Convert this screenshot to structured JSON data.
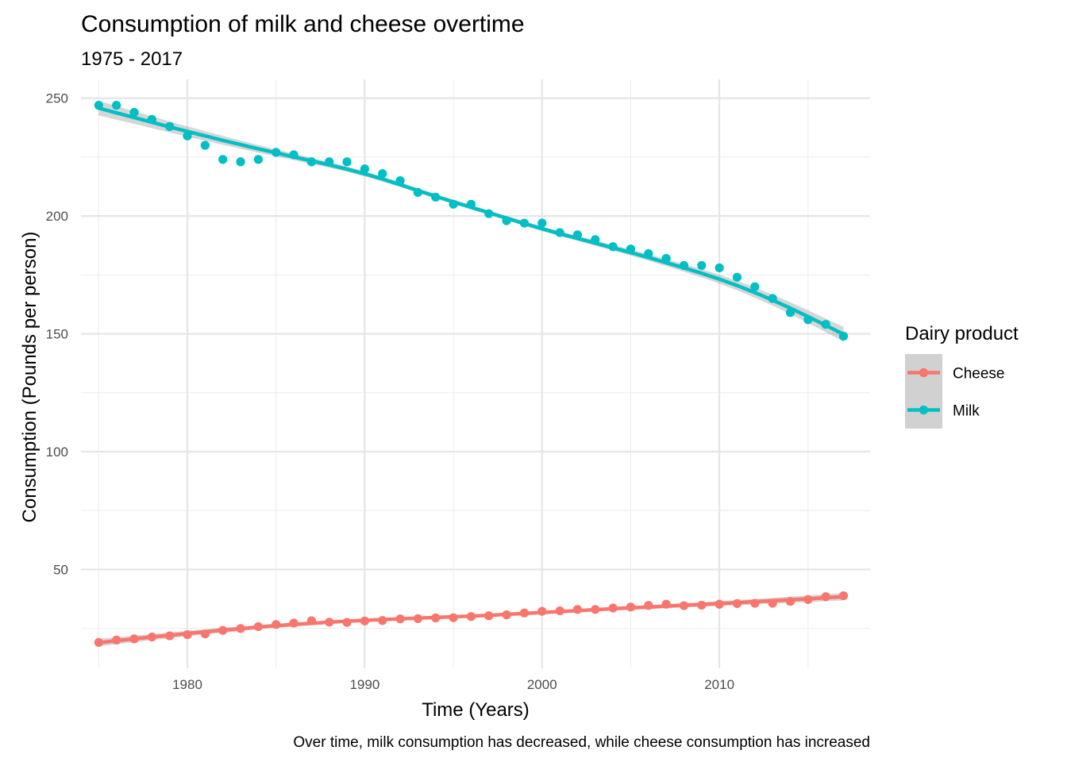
{
  "chart_data": {
    "type": "scatter",
    "title": "Consumption of milk and cheese overtime",
    "subtitle": "1975 - 2017",
    "xlabel": "Time (Years)",
    "ylabel": "Consumption (Pounds per person)",
    "caption": "Over time, milk consumption has decreased, while cheese consumption has increased",
    "xlim": [
      1974,
      2018.5
    ],
    "ylim": [
      8,
      258
    ],
    "x_ticks": [
      1980,
      1990,
      2000,
      2010
    ],
    "y_ticks": [
      50,
      100,
      150,
      200,
      250
    ],
    "grid": true,
    "legend": {
      "title": "Dairy product",
      "position": "right"
    },
    "smooth": {
      "method": "loess",
      "confidence_band": true
    },
    "x": [
      1975,
      1976,
      1977,
      1978,
      1979,
      1980,
      1981,
      1982,
      1983,
      1984,
      1985,
      1986,
      1987,
      1988,
      1989,
      1990,
      1991,
      1992,
      1993,
      1994,
      1995,
      1996,
      1997,
      1998,
      1999,
      2000,
      2001,
      2002,
      2003,
      2004,
      2005,
      2006,
      2007,
      2008,
      2009,
      2010,
      2011,
      2012,
      2013,
      2014,
      2015,
      2016,
      2017
    ],
    "series": [
      {
        "name": "Cheese",
        "color": "#F8766D",
        "values": [
          19.0,
          20.0,
          20.5,
          21.3,
          21.8,
          22.3,
          22.6,
          24.1,
          24.9,
          25.7,
          26.6,
          27.2,
          28.2,
          27.6,
          27.5,
          28.1,
          28.3,
          29.0,
          29.1,
          29.4,
          29.5,
          30.0,
          30.3,
          30.7,
          31.5,
          32.2,
          32.4,
          33.0,
          33.0,
          33.6,
          34.0,
          34.7,
          35.2,
          34.6,
          34.8,
          35.2,
          35.5,
          35.6,
          35.6,
          36.4,
          37.2,
          38.4,
          38.8
        ],
        "fit": [
          18.9,
          19.7,
          20.5,
          21.3,
          22.0,
          22.8,
          23.5,
          24.2,
          24.8,
          25.5,
          26.1,
          26.6,
          27.1,
          27.6,
          28.0,
          28.4,
          28.7,
          29.0,
          29.3,
          29.6,
          29.9,
          30.2,
          30.5,
          30.9,
          31.3,
          31.7,
          32.1,
          32.5,
          32.9,
          33.3,
          33.7,
          34.0,
          34.4,
          34.8,
          35.1,
          35.5,
          35.9,
          36.3,
          36.7,
          37.1,
          37.5,
          38.0,
          38.4
        ]
      },
      {
        "name": "Milk",
        "color": "#00BFC4",
        "values": [
          247,
          247,
          244,
          241,
          238,
          234,
          230,
          224,
          223,
          224,
          227,
          226,
          223,
          223,
          223,
          220,
          218,
          215,
          210,
          208,
          205,
          205,
          201,
          198,
          197,
          197,
          193,
          192,
          190,
          187,
          186,
          184,
          182,
          179,
          179,
          178,
          174,
          170,
          165,
          159,
          156,
          154,
          149
        ],
        "fit": [
          245.8,
          243.8,
          241.8,
          239.8,
          237.8,
          235.9,
          234.0,
          232.1,
          230.3,
          228.5,
          226.8,
          225.1,
          223.4,
          221.7,
          219.9,
          217.9,
          215.7,
          213.3,
          210.8,
          208.4,
          206.0,
          203.7,
          201.4,
          199.1,
          196.8,
          194.6,
          192.5,
          190.5,
          188.5,
          186.5,
          184.5,
          182.4,
          180.2,
          178.0,
          175.7,
          173.2,
          170.5,
          167.5,
          164.3,
          160.9,
          157.3,
          153.6,
          149.8
        ]
      }
    ]
  }
}
